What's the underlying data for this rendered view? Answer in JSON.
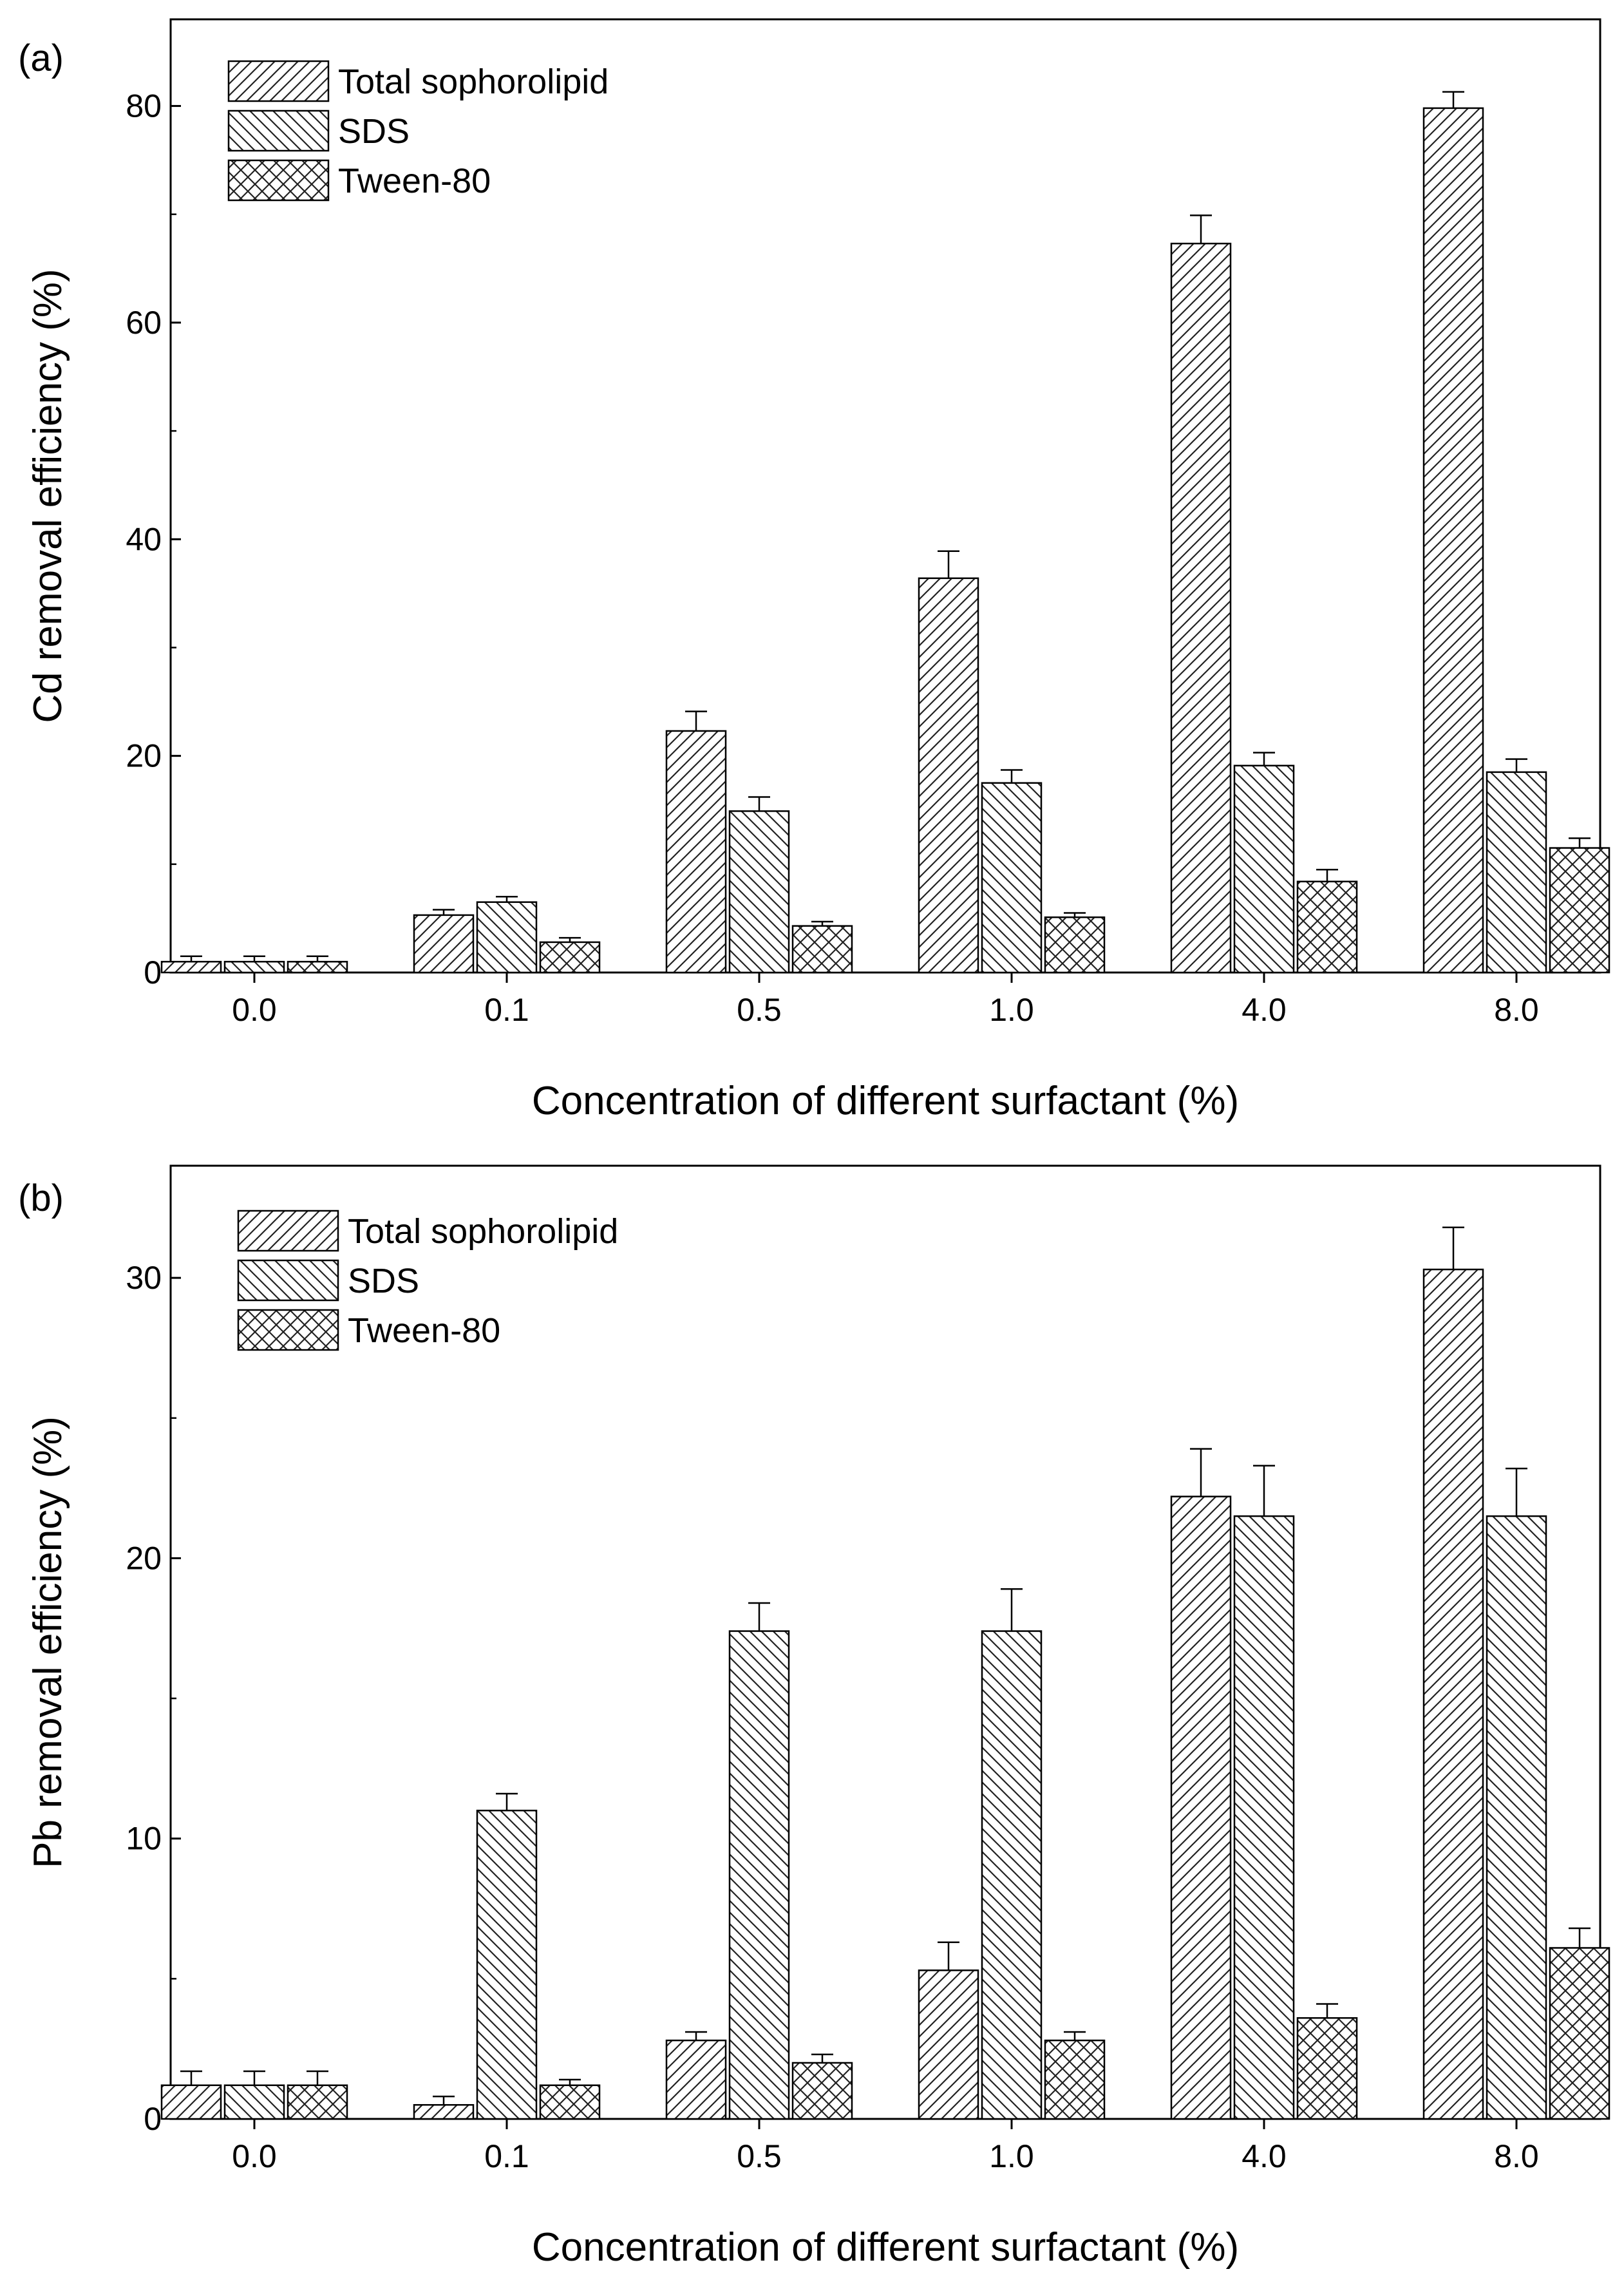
{
  "chart_data": [
    {
      "type": "bar",
      "panel_label": "(a)",
      "categories": [
        "0.0",
        "0.1",
        "0.5",
        "1.0",
        "4.0",
        "8.0"
      ],
      "series": [
        {
          "name": "Total sophorolipid",
          "pattern": "hatch-forward",
          "values": [
            1.0,
            5.3,
            22.3,
            36.4,
            67.3,
            79.8
          ],
          "errors": [
            0.5,
            0.5,
            1.8,
            2.5,
            2.6,
            1.5
          ]
        },
        {
          "name": "SDS",
          "pattern": "hatch-back",
          "values": [
            1.0,
            6.5,
            14.9,
            17.5,
            19.1,
            18.5
          ],
          "errors": [
            0.5,
            0.5,
            1.3,
            1.2,
            1.2,
            1.2
          ]
        },
        {
          "name": "Tween-80",
          "pattern": "crosshatch",
          "values": [
            1.0,
            2.8,
            4.3,
            5.1,
            8.4,
            11.5
          ],
          "errors": [
            0.5,
            0.4,
            0.4,
            0.4,
            1.1,
            0.9
          ]
        }
      ],
      "xlabel": "Concentration of different surfactant (%)",
      "ylabel": "Cd removal efficiency (%)",
      "ylim": [
        0,
        88
      ],
      "yticks": [
        0,
        20,
        40,
        60,
        80
      ],
      "legend": "top-left",
      "grid": false
    },
    {
      "type": "bar",
      "panel_label": "(b)",
      "categories": [
        "0.0",
        "0.1",
        "0.5",
        "1.0",
        "4.0",
        "8.0"
      ],
      "series": [
        {
          "name": "Total sophorolipid",
          "pattern": "hatch-forward",
          "values": [
            1.2,
            0.5,
            2.8,
            5.3,
            22.2,
            30.3
          ],
          "errors": [
            0.5,
            0.3,
            0.3,
            1.0,
            1.7,
            1.5
          ]
        },
        {
          "name": "SDS",
          "pattern": "hatch-back",
          "values": [
            1.2,
            11.0,
            17.4,
            17.4,
            21.5,
            21.5
          ],
          "errors": [
            0.5,
            0.6,
            1.0,
            1.5,
            1.8,
            1.7
          ]
        },
        {
          "name": "Tween-80",
          "pattern": "crosshatch",
          "values": [
            1.2,
            1.2,
            2.0,
            2.8,
            3.6,
            6.1
          ],
          "errors": [
            0.5,
            0.2,
            0.3,
            0.3,
            0.5,
            0.7
          ]
        }
      ],
      "xlabel": "Concentration of different surfactant (%)",
      "ylabel": "Pb removal efficiency (%)",
      "ylim": [
        0,
        34
      ],
      "yticks": [
        0,
        10,
        20,
        30
      ],
      "legend": "top-left",
      "grid": false
    }
  ]
}
